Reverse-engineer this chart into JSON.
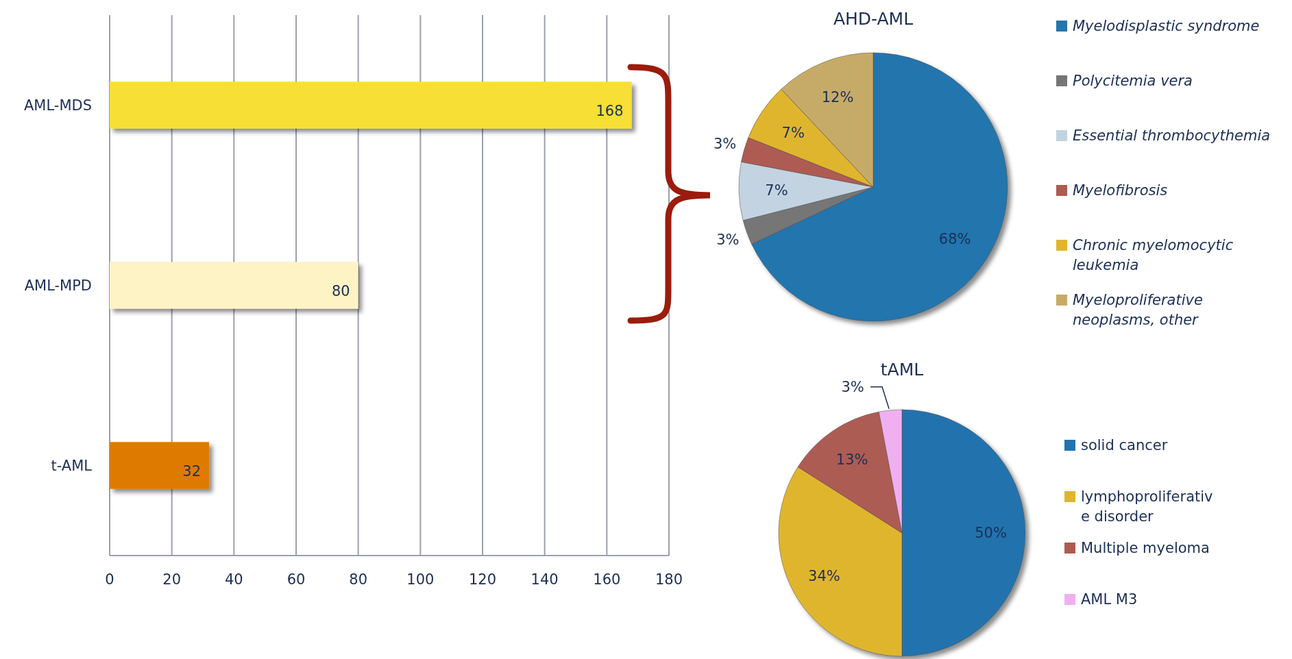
{
  "chart_data": [
    {
      "type": "bar",
      "orientation": "horizontal",
      "categories": [
        "AML-MDS",
        "AML-MPD",
        "t-AML"
      ],
      "values": [
        168,
        80,
        32
      ],
      "colors": [
        "#f7df36",
        "#fdf3c4",
        "#df7a00"
      ],
      "xlim": [
        0,
        180
      ],
      "xticks": [
        0,
        20,
        40,
        60,
        80,
        100,
        120,
        140,
        160,
        180
      ],
      "grid": "x",
      "data_labels": true
    },
    {
      "type": "pie",
      "title": "AHD-AML",
      "categories": [
        "Myelodisplastic syndrome",
        "Polycitemia vera",
        "Essential thrombocythemia",
        "Myelofibrosis",
        "Chronic myelomocytic leukemia",
        "Myeloproliferative neoplasms, other"
      ],
      "values": [
        68,
        3,
        7,
        3,
        7,
        12
      ],
      "colors": [
        "#2475ad",
        "#767676",
        "#c3d3e2",
        "#ae5b52",
        "#e0b52d",
        "#c6ab68"
      ],
      "value_labels": [
        "68%",
        "3%",
        "7%",
        "3%",
        "7%",
        "12%"
      ],
      "legend": "right"
    },
    {
      "type": "pie",
      "title": "tAML",
      "categories": [
        "solid cancer",
        "lymphoproliferative disorder",
        "Multiple myeloma",
        "AML M3"
      ],
      "values": [
        50,
        34,
        13,
        3
      ],
      "colors": [
        "#2473ad",
        "#e0b52d",
        "#ad5b52",
        "#f0b0f0"
      ],
      "value_labels": [
        "50%",
        "34%",
        "13%",
        "3%"
      ],
      "legend": "right"
    }
  ]
}
